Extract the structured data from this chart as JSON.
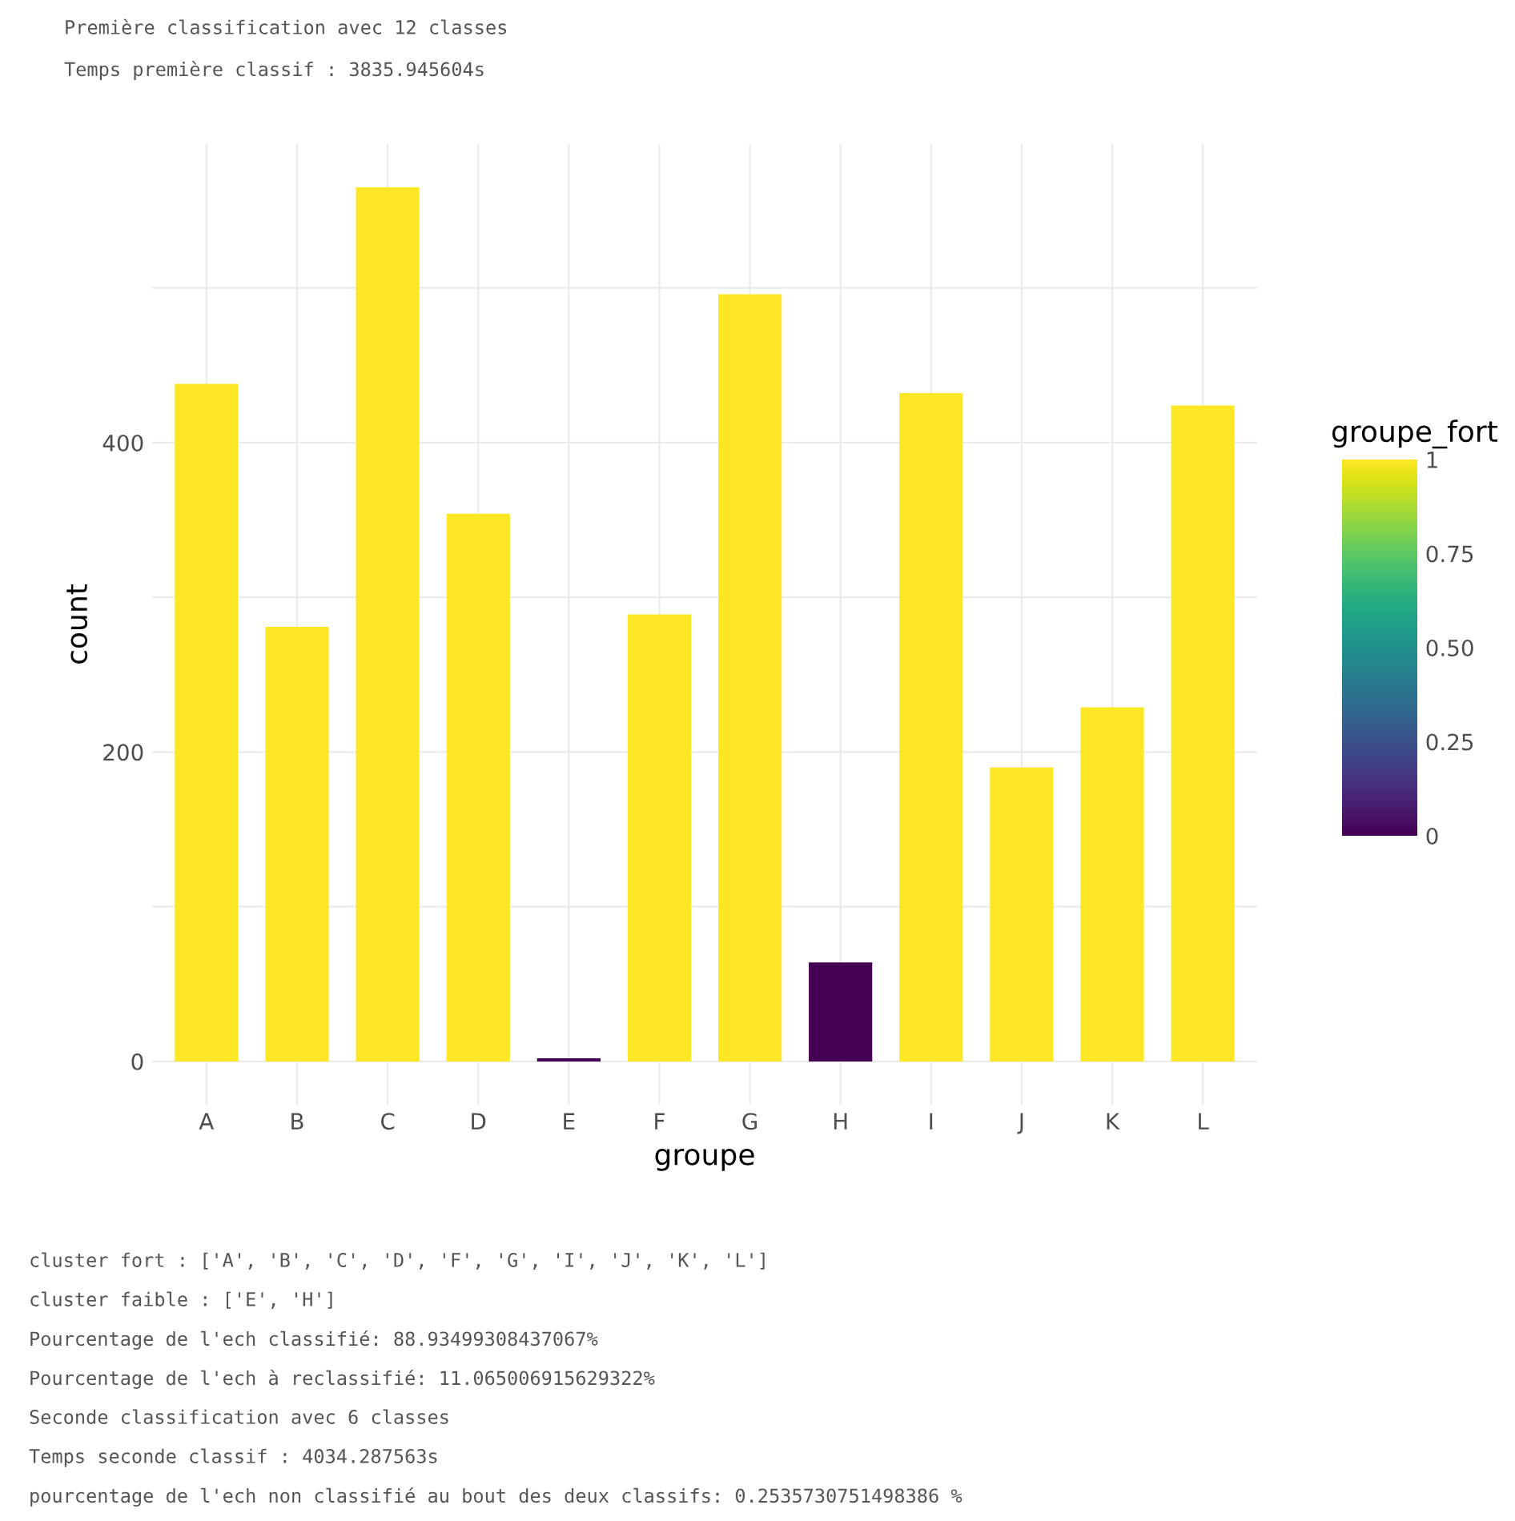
{
  "chart_data": {
    "type": "bar",
    "title": "Première classification avec 12 classes",
    "subtitle": "Temps première classif : 3835.945604s",
    "xlabel": "groupe",
    "ylabel": "count",
    "clabel": "groupe_fort",
    "categories": [
      "A",
      "B",
      "C",
      "D",
      "E",
      "F",
      "G",
      "H",
      "I",
      "J",
      "K",
      "L"
    ],
    "values": [
      438,
      281,
      565,
      354,
      2,
      289,
      496,
      64,
      432,
      190,
      229,
      424
    ],
    "colors": [
      "#fde725",
      "#fde725",
      "#fde725",
      "#fde725",
      "#440154",
      "#fde725",
      "#fde725",
      "#440154",
      "#fde725",
      "#fde725",
      "#fde725",
      "#fde725"
    ],
    "ylim": [
      -28,
      593
    ],
    "yticks": [
      0,
      {
        "value": 100,
        "label": null
      },
      200,
      {
        "value": 300,
        "label": null
      },
      400,
      {
        "value": 500,
        "label": null
      }
    ],
    "clim": [
      0,
      1
    ],
    "cticks": [
      0,
      0.25,
      {
        "value": 0.5,
        "label": "0.50"
      },
      0.75,
      1
    ],
    "grid": true,
    "annotations": [
      "cluster fort : ['A', 'B', 'C', 'D', 'F', 'G', 'I', 'J', 'K', 'L']",
      "cluster faible : ['E', 'H']",
      "Pourcentage de l'ech classifié: 88.93499308437067%",
      "Pourcentage de l'ech à reclassifié: 11.065006915629322%",
      "Seconde classification avec 6 classes",
      "Temps seconde classif : 4034.287563s",
      "pourcentage de l'ech non classifié au bout des deux classifs: 0.2535730751498386 %"
    ]
  }
}
